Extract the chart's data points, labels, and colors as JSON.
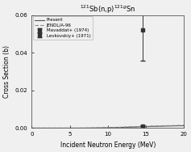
{
  "title": "$^{121}$Sb(n,p)$^{121g}$Sn",
  "xlabel": "Incident Neutron Energy (MeV)",
  "ylabel": "Cross Section (b)",
  "xlim": [
    0,
    20
  ],
  "ylim": [
    0,
    0.06
  ],
  "yticks": [
    0.0,
    0.02,
    0.04,
    0.06
  ],
  "xticks": [
    0,
    5,
    10,
    15,
    20
  ],
  "legend_entries": [
    "Present",
    "JENDL/A-96",
    "Mavaddat+ (1974)",
    "Levkovskiy+ (1971)"
  ],
  "present_x": [
    0,
    1,
    2,
    3,
    4,
    5,
    6,
    7,
    8,
    9,
    10,
    11,
    12,
    13,
    14,
    15,
    16,
    17,
    18,
    19,
    20
  ],
  "present_y": [
    0.0,
    0.0,
    0.0,
    0.0,
    0.0,
    0.0,
    0.0,
    2e-05,
    6e-05,
    0.00012,
    0.0002,
    0.0003,
    0.0004,
    0.00052,
    0.00065,
    0.00078,
    0.0009,
    0.001,
    0.0011,
    0.00118,
    0.00125
  ],
  "jendl_x": [
    0,
    1,
    2,
    3,
    4,
    5,
    6,
    7,
    8,
    9,
    10,
    11,
    12,
    13,
    14,
    15,
    16,
    17,
    18,
    19,
    20
  ],
  "jendl_y": [
    0.0,
    0.0,
    0.0,
    0.0,
    0.0,
    0.0,
    0.0,
    3e-05,
    8e-05,
    0.00015,
    0.00025,
    0.00037,
    0.0005,
    0.00065,
    0.0008,
    0.00095,
    0.00108,
    0.0012,
    0.0013,
    0.0014,
    0.00148
  ],
  "mavaddat_x": [
    14.6
  ],
  "mavaddat_y": [
    0.052
  ],
  "mavaddat_yerr_lo": [
    0.016
  ],
  "mavaddat_yerr_hi": [
    0.009
  ],
  "levkovskiy_x": [
    14.6
  ],
  "levkovskiy_y": [
    0.0012
  ],
  "levkovskiy_yerr": [
    0.0003
  ],
  "line_color": "#555555",
  "dashed_color": "#888888",
  "marker_color": "#333333",
  "bg_color": "#f0f0f0"
}
